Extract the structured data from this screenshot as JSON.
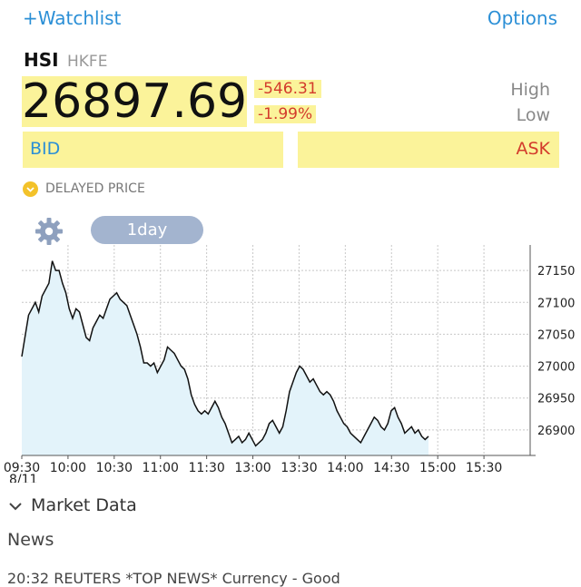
{
  "header": {
    "watchlist_label": "+Watchlist",
    "options_label": "Options"
  },
  "quote": {
    "symbol": "HSI",
    "exchange": "HKFE",
    "price": "26897.69",
    "change": "-546.31",
    "change_pct": "-1.99%",
    "high_label": "High",
    "low_label": "Low",
    "bid_label": "BID",
    "ask_label": "ASK",
    "delayed_label": "DELAYED PRICE"
  },
  "chart_controls": {
    "range_label": "1day",
    "settings_icon": "gear-icon"
  },
  "colors": {
    "accent": "#2b8fd6",
    "down": "#d33b2c",
    "highlight": "#fbf39a",
    "area_fill": "#e3f3fa",
    "range_button": "#a3b4cf"
  },
  "chart_data": {
    "type": "area",
    "x_labels": [
      "09:30",
      "10:00",
      "10:30",
      "11:00",
      "11:30",
      "13:00",
      "13:30",
      "14:00",
      "14:30",
      "15:00",
      "15:30"
    ],
    "date_label": "8/11",
    "y_ticks": [
      27150,
      27100,
      27050,
      27000,
      26950,
      26900
    ],
    "ylim": [
      26860,
      27190
    ],
    "grid": true,
    "series": [
      {
        "values": [
          [
            0,
            27015
          ],
          [
            2,
            27080
          ],
          [
            4,
            27100
          ],
          [
            5,
            27085
          ],
          [
            6,
            27110
          ],
          [
            8,
            27130
          ],
          [
            9,
            27165
          ],
          [
            10,
            27150
          ],
          [
            11,
            27150
          ],
          [
            12,
            27130
          ],
          [
            13,
            27115
          ],
          [
            14,
            27090
          ],
          [
            15,
            27075
          ],
          [
            16,
            27090
          ],
          [
            17,
            27085
          ],
          [
            18,
            27065
          ],
          [
            19,
            27045
          ],
          [
            20,
            27040
          ],
          [
            21,
            27060
          ],
          [
            22,
            27070
          ],
          [
            23,
            27080
          ],
          [
            24,
            27075
          ],
          [
            25,
            27090
          ],
          [
            26,
            27105
          ],
          [
            27,
            27110
          ],
          [
            28,
            27115
          ],
          [
            29,
            27105
          ],
          [
            30,
            27100
          ],
          [
            31,
            27095
          ],
          [
            32,
            27080
          ],
          [
            33,
            27065
          ],
          [
            34,
            27050
          ],
          [
            35,
            27030
          ],
          [
            36,
            27005
          ],
          [
            37,
            27005
          ],
          [
            38,
            27000
          ],
          [
            39,
            27005
          ],
          [
            40,
            26990
          ],
          [
            41,
            27000
          ],
          [
            42,
            27010
          ],
          [
            43,
            27030
          ],
          [
            44,
            27025
          ],
          [
            45,
            27020
          ],
          [
            46,
            27010
          ],
          [
            47,
            27000
          ],
          [
            48,
            26995
          ],
          [
            49,
            26980
          ],
          [
            50,
            26955
          ],
          [
            51,
            26940
          ],
          [
            52,
            26930
          ],
          [
            53,
            26925
          ],
          [
            54,
            26930
          ],
          [
            55,
            26925
          ],
          [
            56,
            26935
          ],
          [
            57,
            26945
          ],
          [
            58,
            26935
          ],
          [
            59,
            26920
          ],
          [
            60,
            26910
          ],
          [
            61,
            26895
          ],
          [
            62,
            26880
          ],
          [
            63,
            26885
          ],
          [
            64,
            26890
          ],
          [
            65,
            26880
          ],
          [
            66,
            26885
          ],
          [
            67,
            26895
          ],
          [
            68,
            26885
          ],
          [
            69,
            26875
          ],
          [
            70,
            26880
          ],
          [
            71,
            26885
          ],
          [
            72,
            26895
          ],
          [
            73,
            26910
          ],
          [
            74,
            26915
          ],
          [
            75,
            26905
          ],
          [
            76,
            26895
          ],
          [
            77,
            26905
          ],
          [
            78,
            26930
          ],
          [
            79,
            26960
          ],
          [
            80,
            26975
          ],
          [
            81,
            26990
          ],
          [
            82,
            27000
          ],
          [
            83,
            26995
          ],
          [
            84,
            26985
          ],
          [
            85,
            26975
          ],
          [
            86,
            26980
          ],
          [
            87,
            26970
          ],
          [
            88,
            26960
          ],
          [
            89,
            26955
          ],
          [
            90,
            26960
          ],
          [
            91,
            26955
          ],
          [
            92,
            26945
          ],
          [
            93,
            26930
          ],
          [
            94,
            26920
          ],
          [
            95,
            26910
          ],
          [
            96,
            26905
          ],
          [
            97,
            26895
          ],
          [
            98,
            26890
          ],
          [
            99,
            26885
          ],
          [
            100,
            26880
          ],
          [
            101,
            26890
          ],
          [
            102,
            26900
          ],
          [
            103,
            26910
          ],
          [
            104,
            26920
          ],
          [
            105,
            26915
          ],
          [
            106,
            26905
          ],
          [
            107,
            26900
          ],
          [
            108,
            26910
          ],
          [
            109,
            26930
          ],
          [
            110,
            26935
          ],
          [
            111,
            26920
          ],
          [
            112,
            26910
          ],
          [
            113,
            26895
          ],
          [
            114,
            26900
          ],
          [
            115,
            26905
          ],
          [
            116,
            26895
          ],
          [
            117,
            26900
          ],
          [
            118,
            26890
          ],
          [
            119,
            26885
          ],
          [
            120,
            26890
          ]
        ]
      }
    ],
    "x_domain_minutes": [
      0,
      150
    ]
  },
  "footer": {
    "market_data_label": "Market Data",
    "news_label": "News",
    "ticker_text": "20:32 REUTERS *TOP NEWS* Currency - Good"
  }
}
